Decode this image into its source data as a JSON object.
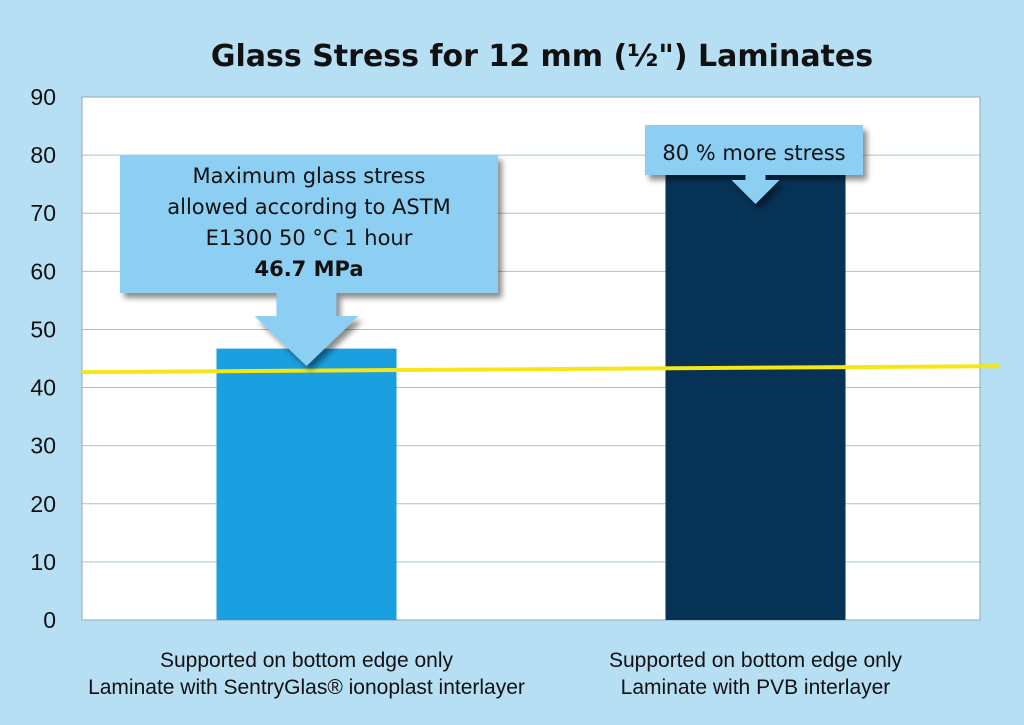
{
  "chart_data": {
    "type": "bar",
    "title": "Glass Stress for 12 mm (½\") Laminates",
    "xlabel": "",
    "ylabel": "",
    "ylim": [
      0,
      90
    ],
    "yticks": [
      0,
      10,
      20,
      30,
      40,
      50,
      60,
      70,
      80,
      90
    ],
    "grid": true,
    "categories": [
      [
        "Supported on bottom edge only",
        "Laminate with SentryGlas® ionoplast interlayer"
      ],
      [
        "Supported on bottom edge only",
        "Laminate with PVB interlayer"
      ]
    ],
    "values": [
      46.7,
      84
    ],
    "bar_colors": [
      "#1aa0e0",
      "#063256"
    ],
    "reference_line": {
      "value": 43,
      "color": "#f5e616"
    },
    "annotations": [
      {
        "lines": [
          "Maximum glass stress",
          "allowed according to ASTM",
          "E1300 50 °C  1 hour"
        ],
        "bold_line": "46.7 MPa",
        "target_bar": 0
      },
      {
        "lines": [
          "80 % more stress"
        ],
        "bold_line": "",
        "target_bar": 1
      }
    ]
  },
  "colors": {
    "background": "#b7dff4",
    "plot_background": "#ffffff",
    "grid": "#9ec4dc",
    "callout_fill": "#8dcff2"
  }
}
